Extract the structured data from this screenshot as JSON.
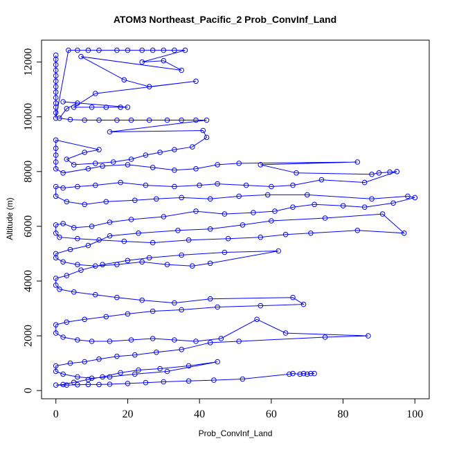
{
  "chart_data": {
    "type": "line",
    "title": "ATOM3 Northeast_Pacific_2 Prob_ConvInf_Land",
    "xlabel": "Prob_ConvInf_Land",
    "ylabel": "Altitude (m)",
    "xlim": [
      -4,
      104
    ],
    "ylim": [
      -300,
      12800
    ],
    "x_ticks": [
      0,
      20,
      40,
      60,
      80,
      100
    ],
    "y_ticks": [
      0,
      2000,
      4000,
      6000,
      8000,
      10000,
      12000
    ],
    "grid": false,
    "legend": "none",
    "marker": "open-circle",
    "series_color": "#0000ff",
    "series": [
      {
        "points": [
          [
            0,
            12250
          ],
          [
            0,
            12100
          ],
          [
            0,
            11900
          ],
          [
            0,
            11700
          ],
          [
            0,
            11500
          ],
          [
            0,
            11300
          ],
          [
            0,
            11100
          ],
          [
            0,
            10900
          ],
          [
            0,
            10700
          ],
          [
            0,
            10500
          ],
          [
            0,
            10350
          ],
          [
            0,
            10150
          ],
          [
            0,
            9950
          ],
          [
            3.5,
            12430
          ],
          [
            6,
            12430
          ],
          [
            9,
            12430
          ],
          [
            12,
            12430
          ],
          [
            17,
            12430
          ],
          [
            20,
            12430
          ],
          [
            24,
            12430
          ],
          [
            27,
            12430
          ],
          [
            30,
            12430
          ],
          [
            33,
            12430
          ],
          [
            36,
            12430
          ],
          [
            24,
            12000
          ],
          [
            30,
            12050
          ],
          [
            35,
            11700
          ],
          [
            7,
            12200
          ],
          [
            19,
            11350
          ],
          [
            26,
            11100
          ],
          [
            39,
            11300
          ],
          [
            11,
            10850
          ],
          [
            5,
            10350
          ],
          [
            10,
            10350
          ],
          [
            14,
            10350
          ],
          [
            18,
            10350
          ],
          [
            20,
            10350
          ],
          [
            2,
            10550
          ],
          [
            6,
            10500
          ],
          [
            3,
            10300
          ],
          [
            1,
            9950
          ],
          [
            4,
            9900
          ],
          [
            8,
            9880
          ],
          [
            12,
            9880
          ],
          [
            17,
            9880
          ],
          [
            21,
            9880
          ],
          [
            26,
            9880
          ],
          [
            31,
            9880
          ],
          [
            35,
            9880
          ],
          [
            39,
            9880
          ],
          [
            42,
            9880
          ],
          [
            15,
            9450
          ],
          [
            41,
            9500
          ],
          [
            42,
            9250
          ],
          [
            38,
            8900
          ],
          [
            33,
            8800
          ],
          [
            29,
            8700
          ],
          [
            25,
            8600
          ],
          [
            21,
            8450
          ],
          [
            16,
            8350
          ],
          [
            11,
            8300
          ],
          [
            5,
            8250
          ],
          [
            3,
            8450
          ],
          [
            8,
            8700
          ],
          [
            12,
            8800
          ],
          [
            0,
            9150
          ],
          [
            0,
            8850
          ],
          [
            0,
            8600
          ],
          [
            0,
            8350
          ],
          [
            0,
            8100
          ],
          [
            2,
            7950
          ],
          [
            9,
            8100
          ],
          [
            13,
            8200
          ],
          [
            20,
            8250
          ],
          [
            27,
            8150
          ],
          [
            33,
            8050
          ],
          [
            39,
            8100
          ],
          [
            45,
            8250
          ],
          [
            51,
            8300
          ],
          [
            84,
            8350
          ],
          [
            57,
            8250
          ],
          [
            67,
            7950
          ],
          [
            88,
            7900
          ],
          [
            90,
            7950
          ],
          [
            93,
            7980
          ],
          [
            95,
            8000
          ],
          [
            86,
            7600
          ],
          [
            74,
            7700
          ],
          [
            66,
            7500
          ],
          [
            60,
            7450
          ],
          [
            53,
            7500
          ],
          [
            45,
            7550
          ],
          [
            40,
            7500
          ],
          [
            33,
            7450
          ],
          [
            25,
            7500
          ],
          [
            18,
            7600
          ],
          [
            11,
            7500
          ],
          [
            6,
            7450
          ],
          [
            2,
            7400
          ],
          [
            0,
            7450
          ],
          [
            0,
            7100
          ],
          [
            3,
            6900
          ],
          [
            8,
            6800
          ],
          [
            14,
            6900
          ],
          [
            22,
            6950
          ],
          [
            28,
            7000
          ],
          [
            35,
            7050
          ],
          [
            43,
            7000
          ],
          [
            51,
            7100
          ],
          [
            59,
            7150
          ],
          [
            70,
            7150
          ],
          [
            88,
            7000
          ],
          [
            98,
            7100
          ],
          [
            100,
            7050
          ],
          [
            94,
            6850
          ],
          [
            86,
            6700
          ],
          [
            80,
            6750
          ],
          [
            72,
            6800
          ],
          [
            66,
            6700
          ],
          [
            61,
            6550
          ],
          [
            55,
            6500
          ],
          [
            47,
            6450
          ],
          [
            39,
            6550
          ],
          [
            30,
            6350
          ],
          [
            21,
            6250
          ],
          [
            15,
            6150
          ],
          [
            10,
            6000
          ],
          [
            5,
            5950
          ],
          [
            2,
            6100
          ],
          [
            0,
            6050
          ],
          [
            0,
            5750
          ],
          [
            1,
            5600
          ],
          [
            6,
            5550
          ],
          [
            12,
            5500
          ],
          [
            19,
            5450
          ],
          [
            27,
            5400
          ],
          [
            37,
            5500
          ],
          [
            48,
            5550
          ],
          [
            57,
            5600
          ],
          [
            64,
            5700
          ],
          [
            71,
            5750
          ],
          [
            84,
            5850
          ],
          [
            97,
            5750
          ],
          [
            91,
            6450
          ],
          [
            75,
            6300
          ],
          [
            60,
            6200
          ],
          [
            52,
            6050
          ],
          [
            43,
            5900
          ],
          [
            34,
            5850
          ],
          [
            23,
            5750
          ],
          [
            15,
            5650
          ],
          [
            9,
            5300
          ],
          [
            4,
            5150
          ],
          [
            0,
            5000
          ],
          [
            0,
            4850
          ],
          [
            2,
            4700
          ],
          [
            6,
            4600
          ],
          [
            11,
            4550
          ],
          [
            17,
            4600
          ],
          [
            24,
            4700
          ],
          [
            31,
            4600
          ],
          [
            38,
            4550
          ],
          [
            43,
            4650
          ],
          [
            62,
            5100
          ],
          [
            47,
            5050
          ],
          [
            35,
            4950
          ],
          [
            26,
            4850
          ],
          [
            20,
            4750
          ],
          [
            13,
            4600
          ],
          [
            7,
            4400
          ],
          [
            3,
            4200
          ],
          [
            0,
            4100
          ],
          [
            0,
            3850
          ],
          [
            1,
            3700
          ],
          [
            5,
            3600
          ],
          [
            11,
            3500
          ],
          [
            17,
            3400
          ],
          [
            24,
            3300
          ],
          [
            33,
            3200
          ],
          [
            43,
            3350
          ],
          [
            66,
            3400
          ],
          [
            69,
            3150
          ],
          [
            57,
            3100
          ],
          [
            45,
            3050
          ],
          [
            35,
            2950
          ],
          [
            27,
            2900
          ],
          [
            20,
            2800
          ],
          [
            14,
            2700
          ],
          [
            8,
            2600
          ],
          [
            3,
            2500
          ],
          [
            0,
            2400
          ],
          [
            0,
            2100
          ],
          [
            2,
            1950
          ],
          [
            6,
            1850
          ],
          [
            10,
            1800
          ],
          [
            15,
            1800
          ],
          [
            21,
            1850
          ],
          [
            27,
            1900
          ],
          [
            33,
            1850
          ],
          [
            39,
            1800
          ],
          [
            46,
            1900
          ],
          [
            56,
            2600
          ],
          [
            64,
            2100
          ],
          [
            87,
            2000
          ],
          [
            75,
            1950
          ],
          [
            51,
            1800
          ],
          [
            43,
            1750
          ],
          [
            35,
            1500
          ],
          [
            28,
            1400
          ],
          [
            22,
            1300
          ],
          [
            17,
            1250
          ],
          [
            12,
            1150
          ],
          [
            8,
            1050
          ],
          [
            4,
            1000
          ],
          [
            0,
            900
          ],
          [
            0,
            700
          ],
          [
            2,
            600
          ],
          [
            6,
            500
          ],
          [
            10,
            450
          ],
          [
            15,
            500
          ],
          [
            22,
            600
          ],
          [
            31,
            700
          ],
          [
            45,
            1050
          ],
          [
            37,
            900
          ],
          [
            29,
            800
          ],
          [
            23,
            750
          ],
          [
            18,
            650
          ],
          [
            13,
            500
          ],
          [
            9,
            400
          ],
          [
            5,
            300
          ],
          [
            2,
            220
          ],
          [
            0,
            200
          ],
          [
            3,
            200
          ],
          [
            6,
            210
          ],
          [
            9,
            220
          ],
          [
            12,
            220
          ],
          [
            15,
            230
          ],
          [
            20,
            260
          ],
          [
            25,
            290
          ],
          [
            30,
            320
          ],
          [
            37,
            350
          ],
          [
            44,
            380
          ],
          [
            52,
            420
          ],
          [
            65,
            600
          ],
          [
            66,
            620
          ],
          [
            68,
            600
          ],
          [
            69,
            620
          ],
          [
            70,
            600
          ],
          [
            71,
            620
          ],
          [
            72,
            620
          ]
        ]
      }
    ]
  }
}
